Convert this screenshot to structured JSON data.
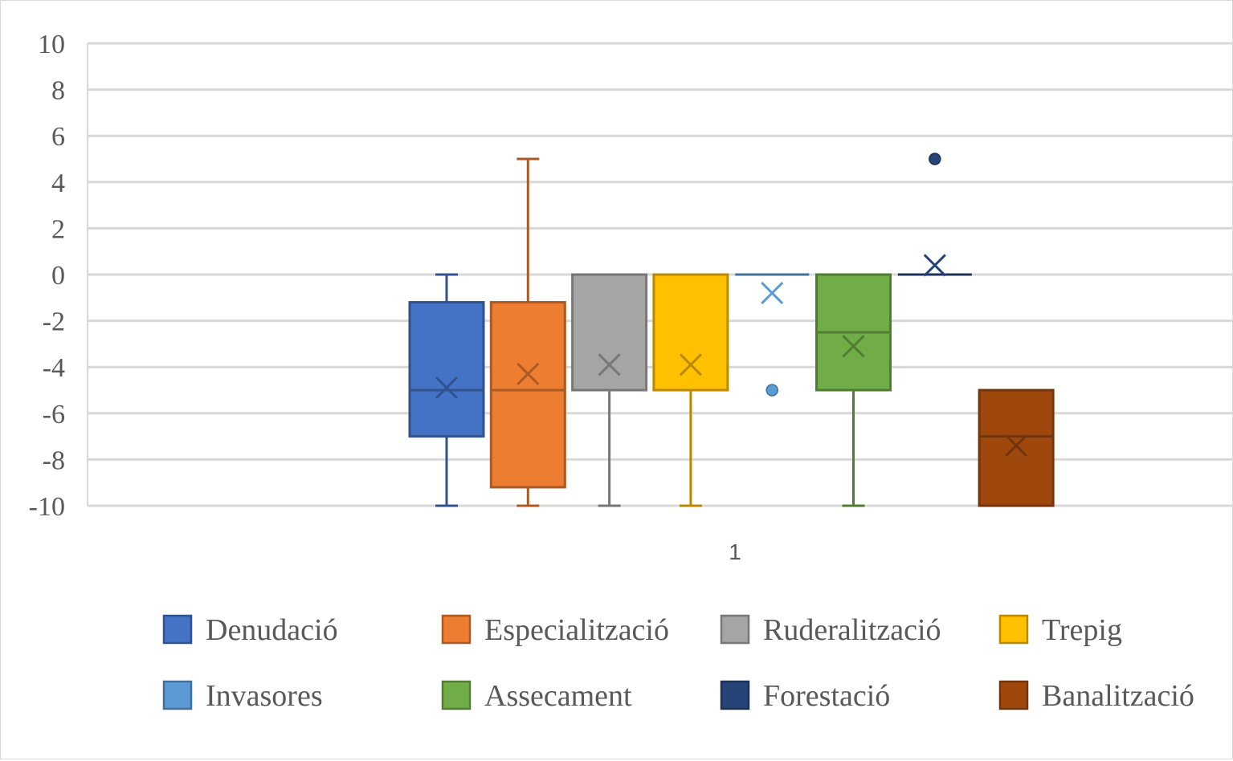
{
  "chart_data": {
    "type": "box",
    "categories": [
      "1"
    ],
    "ylim": [
      -10,
      10
    ],
    "yticks": [
      10,
      8,
      6,
      4,
      2,
      0,
      -2,
      -4,
      -6,
      -8,
      -10
    ],
    "grid": true,
    "legend_position": "bottom",
    "series": [
      {
        "name": "Denudació",
        "color": "#4472c4",
        "whisker_low": -10,
        "q1": -7,
        "median": -5,
        "q3": -1.2,
        "whisker_high": 0,
        "mean": -4.9,
        "outliers": []
      },
      {
        "name": "Especialització",
        "color": "#ed7d31",
        "whisker_low": -10,
        "q1": -9.2,
        "median": -5,
        "q3": -1.2,
        "whisker_high": 5,
        "mean": -4.3,
        "outliers": []
      },
      {
        "name": "Ruderalització",
        "color": "#a5a5a5",
        "whisker_low": -10,
        "q1": -5,
        "median": -5,
        "q3": 0,
        "whisker_high": 0,
        "mean": -3.9,
        "outliers": []
      },
      {
        "name": "Trepig",
        "color": "#ffc000",
        "whisker_low": -10,
        "q1": -5,
        "median": -5,
        "q3": 0,
        "whisker_high": 0,
        "mean": -3.9,
        "outliers": []
      },
      {
        "name": "Invasores",
        "color": "#5b9bd5",
        "whisker_low": 0,
        "q1": 0,
        "median": 0,
        "q3": 0,
        "whisker_high": 0,
        "mean": -0.8,
        "outliers": [
          -5
        ]
      },
      {
        "name": "Assecament",
        "color": "#70ad47",
        "whisker_low": -10,
        "q1": -5,
        "median": -2.5,
        "q3": 0,
        "whisker_high": 0,
        "mean": -3.1,
        "outliers": []
      },
      {
        "name": "Forestació",
        "color": "#264478",
        "whisker_low": 0,
        "q1": 0,
        "median": 0,
        "q3": 0,
        "whisker_high": 0,
        "mean": 0.4,
        "outliers": [
          5
        ]
      },
      {
        "name": "Banalització",
        "color": "#9e480e",
        "whisker_low": -10,
        "q1": -10,
        "median": -7,
        "q3": -5,
        "whisker_high": -5,
        "mean": -7.4,
        "outliers": []
      }
    ]
  }
}
